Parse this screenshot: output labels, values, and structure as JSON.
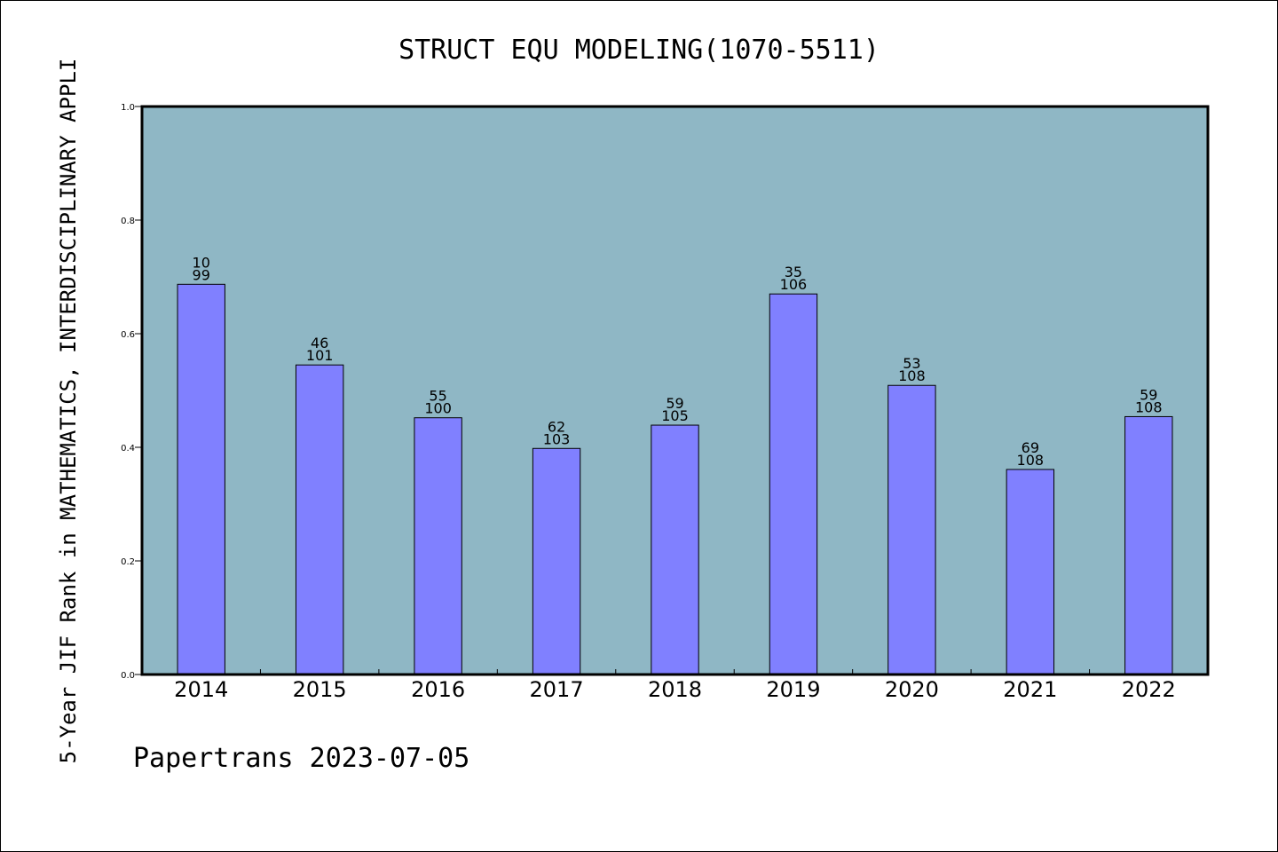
{
  "chart_data": {
    "type": "bar",
    "title": "STRUCT EQU MODELING(1070-5511)",
    "ylabel": "5-Year JIF Rank in MATHEMATICS, INTERDISCIPLINARY APPLI",
    "xlabel": "",
    "categories": [
      "2014",
      "2015",
      "2016",
      "2017",
      "2018",
      "2019",
      "2020",
      "2021",
      "2022"
    ],
    "values": [
      0.687,
      0.545,
      0.452,
      0.398,
      0.439,
      0.67,
      0.509,
      0.361,
      0.454
    ],
    "rank": [
      "10",
      "46",
      "55",
      "62",
      "59",
      "35",
      "53",
      "69",
      "59"
    ],
    "total": [
      "99",
      "101",
      "100",
      "103",
      "105",
      "106",
      "108",
      "108",
      "108"
    ],
    "ylim": [
      0,
      1.0
    ],
    "yticks": [
      "0.0",
      "0.2",
      "0.4",
      "0.6",
      "0.8",
      "1.0"
    ],
    "grid": false,
    "colors": {
      "plot_bg": "#8fb7c5",
      "bar": "#8080ff"
    }
  },
  "footer": "Papertrans 2023-07-05"
}
